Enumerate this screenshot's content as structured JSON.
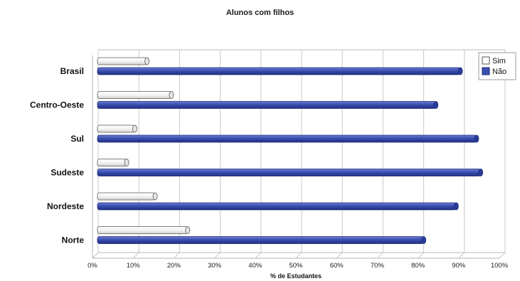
{
  "chart_data": {
    "type": "bar",
    "orientation": "horizontal",
    "title": "Alunos com filhos",
    "xlabel": "% de Estudantes",
    "ylabel": "",
    "xlim": [
      0,
      100
    ],
    "x_ticks": [
      "0%",
      "10%",
      "20%",
      "30%",
      "40%",
      "50%",
      "60%",
      "70%",
      "80%",
      "90%",
      "100%"
    ],
    "categories": [
      "Brasil",
      "Centro-Oeste",
      "Sul",
      "Sudeste",
      "Nordeste",
      "Norte"
    ],
    "series": [
      {
        "name": "Sim",
        "values": [
          12,
          18,
          9,
          7,
          14,
          22
        ],
        "color": "#ffffff"
      },
      {
        "name": "Não",
        "values": [
          89,
          83,
          93,
          94,
          88,
          80
        ],
        "color": "#3a4fb0"
      }
    ],
    "grid": true,
    "legend_position": "top-right"
  }
}
